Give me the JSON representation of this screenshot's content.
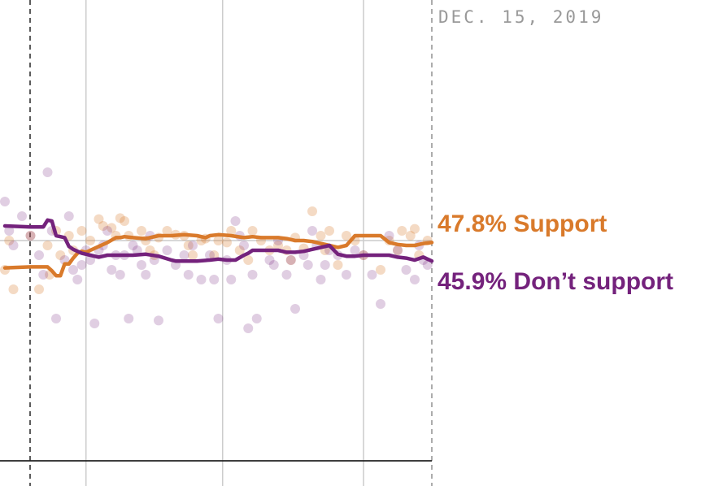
{
  "chart_data": {
    "type": "line",
    "date_label": "DEC. 15, 2019",
    "colors": {
      "support": "#d97a2b",
      "oppose": "#74227c"
    },
    "ylim": [
      30,
      60
    ],
    "xlim": [
      0,
      100
    ],
    "series": [
      {
        "name": "Support",
        "key": "support",
        "end_label": "47.8% Support",
        "end_value": 47.8,
        "x": [
          0,
          6,
          10,
          11,
          12,
          13,
          14,
          15,
          16,
          17,
          18,
          19,
          20,
          21,
          22,
          23,
          24,
          26,
          27,
          28,
          30,
          33,
          36,
          39,
          42,
          45,
          47,
          48,
          50,
          53,
          56,
          58,
          60,
          62,
          64,
          66,
          68,
          70,
          72,
          74,
          76,
          78,
          80,
          82,
          84,
          86,
          88,
          90,
          92,
          94,
          96,
          98,
          100
        ],
        "values": [
          45.2,
          45.3,
          45.3,
          44.9,
          44.4,
          44.4,
          45.6,
          45.6,
          46.2,
          46.7,
          46.9,
          46.8,
          47.0,
          47.2,
          47.4,
          47.6,
          47.8,
          48.3,
          48.3,
          48.4,
          48.3,
          48.2,
          48.5,
          48.5,
          48.6,
          48.5,
          48.3,
          48.5,
          48.6,
          48.5,
          48.3,
          48.4,
          48.3,
          48.3,
          48.3,
          48.2,
          48.0,
          48.0,
          47.9,
          47.7,
          47.5,
          47.3,
          47.5,
          48.5,
          48.5,
          48.5,
          48.5,
          47.8,
          47.6,
          47.5,
          47.5,
          47.7,
          47.8
        ]
      },
      {
        "name": "Don’t support",
        "key": "oppose",
        "end_label": "45.9% Don’t support",
        "end_value": 45.9,
        "x": [
          0,
          6,
          9,
          10,
          11,
          12,
          13,
          14,
          15,
          16,
          17,
          18,
          20,
          22,
          24,
          26,
          28,
          30,
          33,
          36,
          39,
          40,
          42,
          45,
          48,
          50,
          52,
          54,
          56,
          57,
          58,
          60,
          62,
          64,
          66,
          68,
          70,
          72,
          74,
          76,
          78,
          80,
          82,
          84,
          86,
          88,
          90,
          92,
          94,
          96,
          98,
          100
        ],
        "values": [
          49.5,
          49.4,
          49.4,
          50.1,
          50.0,
          48.5,
          48.4,
          48.3,
          47.4,
          47.1,
          46.9,
          46.7,
          46.5,
          46.3,
          46.5,
          46.5,
          46.5,
          46.5,
          46.6,
          46.4,
          46.0,
          45.9,
          45.9,
          45.9,
          46.0,
          46.1,
          46.0,
          46.0,
          46.5,
          46.7,
          47.0,
          47.0,
          47.0,
          47.0,
          46.8,
          46.8,
          46.9,
          47.1,
          47.3,
          47.5,
          46.6,
          46.4,
          46.4,
          46.5,
          46.5,
          46.5,
          46.5,
          46.3,
          46.2,
          46.0,
          46.3,
          45.9
        ]
      }
    ],
    "polls": {
      "support_x": [
        0,
        1,
        2,
        6,
        8,
        10,
        10.5,
        12,
        13,
        15,
        16,
        18,
        20,
        22,
        23,
        25,
        26,
        27,
        28,
        29,
        32,
        33,
        34,
        35,
        36,
        38,
        40,
        42,
        43,
        44,
        46,
        47,
        49,
        50,
        52,
        53,
        55,
        57,
        58,
        60,
        62,
        64,
        66,
        67,
        68,
        70,
        72,
        74,
        75,
        76,
        78,
        80,
        82,
        84,
        88,
        90,
        92,
        93,
        95,
        96,
        97,
        99
      ],
      "support_y": [
        45.0,
        48.0,
        43.0,
        48.5,
        43.0,
        47.5,
        44.5,
        49.0,
        46.5,
        48.5,
        47.0,
        49.0,
        48.0,
        50.2,
        49.5,
        49.3,
        48.5,
        50.3,
        50.0,
        48.5,
        49.0,
        48.0,
        47.0,
        46.5,
        48.3,
        49.0,
        48.6,
        48.5,
        47.5,
        46.5,
        48.0,
        48.2,
        46.5,
        48.0,
        47.8,
        49.0,
        47.0,
        46.0,
        49.0,
        48.0,
        47.0,
        47.5,
        47.0,
        46.0,
        48.3,
        47.2,
        51.0,
        48.5,
        47.0,
        49.0,
        45.5,
        48.5,
        48.0,
        46.5,
        45.0,
        48.0,
        47.0,
        49.0,
        48.5,
        49.2,
        46.5,
        48.0
      ],
      "oppose_x": [
        0,
        1,
        2,
        4,
        6,
        8,
        9,
        10,
        11,
        12,
        14,
        15,
        16,
        17,
        18,
        19,
        20,
        21,
        22,
        23,
        24,
        25,
        26,
        27,
        28,
        29,
        30,
        31,
        32,
        33,
        34,
        35,
        36,
        38,
        40,
        42,
        43,
        44,
        46,
        48,
        49,
        50,
        52,
        53,
        54,
        55,
        56,
        57,
        58,
        59,
        62,
        63,
        64,
        66,
        67,
        68,
        70,
        71,
        72,
        73,
        74,
        75,
        76,
        78,
        80,
        82,
        84,
        86,
        88,
        90,
        92,
        94,
        96,
        97,
        98,
        99
      ],
      "oppose_y": [
        52.0,
        49.0,
        47.5,
        50.5,
        48.5,
        46.5,
        44.5,
        55.0,
        49.0,
        40.0,
        46.0,
        50.5,
        45.0,
        44.0,
        45.5,
        47.0,
        46.0,
        39.5,
        47.0,
        47.5,
        49.0,
        45.0,
        46.5,
        44.5,
        46.5,
        40.0,
        47.5,
        47.0,
        45.5,
        44.5,
        48.5,
        46.0,
        39.8,
        47.0,
        45.5,
        46.5,
        44.5,
        47.5,
        44.0,
        46.5,
        44.0,
        40.0,
        46.0,
        44.0,
        50.0,
        48.5,
        47.5,
        39.0,
        44.5,
        40.0,
        46.0,
        45.5,
        48.0,
        44.5,
        46.0,
        41.0,
        46.5,
        45.5,
        49.0,
        47.5,
        44.0,
        45.5,
        47.0,
        46.5,
        44.5,
        47.0,
        46.5,
        44.5,
        41.5,
        48.5,
        47.0,
        45.0,
        44.0,
        47.5,
        46.0,
        45.5
      ]
    },
    "gridlines": {
      "horizontal_at": 48,
      "vertical_at_x": [
        19,
        51,
        84
      ]
    }
  }
}
